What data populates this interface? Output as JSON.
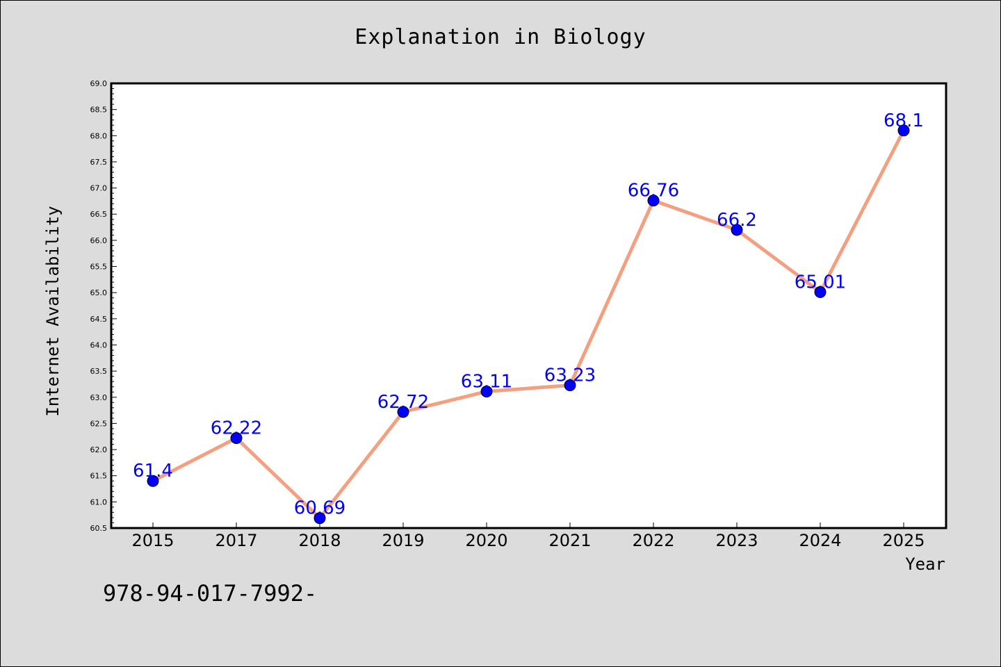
{
  "chart_data": {
    "type": "line",
    "title": "Explanation in Biology",
    "xlabel": "Year",
    "ylabel": "Internet Availability",
    "categories": [
      "2015",
      "2017",
      "2018",
      "2019",
      "2020",
      "2021",
      "2022",
      "2023",
      "2024",
      "2025"
    ],
    "series": [
      {
        "values": [
          61.4,
          62.22,
          60.69,
          62.72,
          63.11,
          63.23,
          66.76,
          66.2,
          65.01,
          68.1
        ],
        "data_labels": [
          "61.4",
          "62.22",
          "60.69",
          "62.72",
          "63.11",
          "63.23",
          "66.76",
          "66.2",
          "65.01",
          "68.1"
        ]
      }
    ],
    "ylim": [
      60.5,
      69.0
    ],
    "yticks": [
      "60.5",
      "61.0",
      "61.5",
      "62.0",
      "62.5",
      "63.0",
      "63.5",
      "64.0",
      "64.5",
      "65.0",
      "65.5",
      "66.0",
      "66.5",
      "67.0",
      "67.5",
      "68.0",
      "68.5",
      "69.0"
    ],
    "grid": false,
    "colors": {
      "line": "#f4a080",
      "marker": "#0000ff",
      "label": "#0000ff",
      "background": "#dcdcdc",
      "plot_background": "#ffffff"
    }
  },
  "annotation": "978-94-017-7992-"
}
